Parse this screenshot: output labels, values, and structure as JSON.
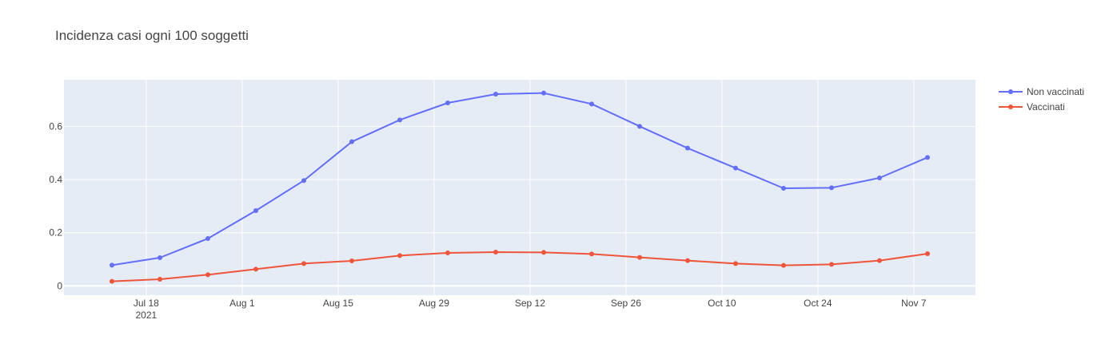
{
  "chart_data": {
    "type": "line",
    "title": "Incidenza casi ogni 100 soggetti",
    "xlabel": "",
    "ylabel": "",
    "x": [
      "2021-07-13",
      "2021-07-20",
      "2021-07-27",
      "2021-08-03",
      "2021-08-10",
      "2021-08-17",
      "2021-08-24",
      "2021-08-31",
      "2021-09-07",
      "2021-09-14",
      "2021-09-21",
      "2021-09-28",
      "2021-10-05",
      "2021-10-12",
      "2021-10-19",
      "2021-10-26",
      "2021-11-02",
      "2021-11-09"
    ],
    "x_ticks": [
      {
        "date": "2021-07-18",
        "label": "Jul 18",
        "sublabel": "2021"
      },
      {
        "date": "2021-08-01",
        "label": "Aug 1"
      },
      {
        "date": "2021-08-15",
        "label": "Aug 15"
      },
      {
        "date": "2021-08-29",
        "label": "Aug 29"
      },
      {
        "date": "2021-09-12",
        "label": "Sep 12"
      },
      {
        "date": "2021-09-26",
        "label": "Sep 26"
      },
      {
        "date": "2021-10-10",
        "label": "Oct 10"
      },
      {
        "date": "2021-10-24",
        "label": "Oct 24"
      },
      {
        "date": "2021-11-07",
        "label": "Nov 7"
      }
    ],
    "xlim": [
      "2021-07-06",
      "2021-11-16"
    ],
    "ylim": [
      -0.035,
      0.775
    ],
    "y_ticks": [
      {
        "value": 0,
        "label": "0"
      },
      {
        "value": 0.2,
        "label": "0.2"
      },
      {
        "value": 0.4,
        "label": "0.4"
      },
      {
        "value": 0.6,
        "label": "0.6"
      }
    ],
    "grid": true,
    "legend_position": "top-right",
    "series": [
      {
        "name": "Non vaccinati",
        "color": "#636efa",
        "values": [
          0.078,
          0.106,
          0.178,
          0.283,
          0.396,
          0.542,
          0.624,
          0.688,
          0.721,
          0.725,
          0.684,
          0.6,
          0.518,
          0.443,
          0.367,
          0.369,
          0.406,
          0.483
        ]
      },
      {
        "name": "Vaccinati",
        "color": "#ef553b",
        "values": [
          0.017,
          0.025,
          0.042,
          0.063,
          0.084,
          0.094,
          0.114,
          0.124,
          0.127,
          0.126,
          0.12,
          0.107,
          0.095,
          0.084,
          0.077,
          0.081,
          0.095,
          0.121
        ]
      }
    ]
  }
}
